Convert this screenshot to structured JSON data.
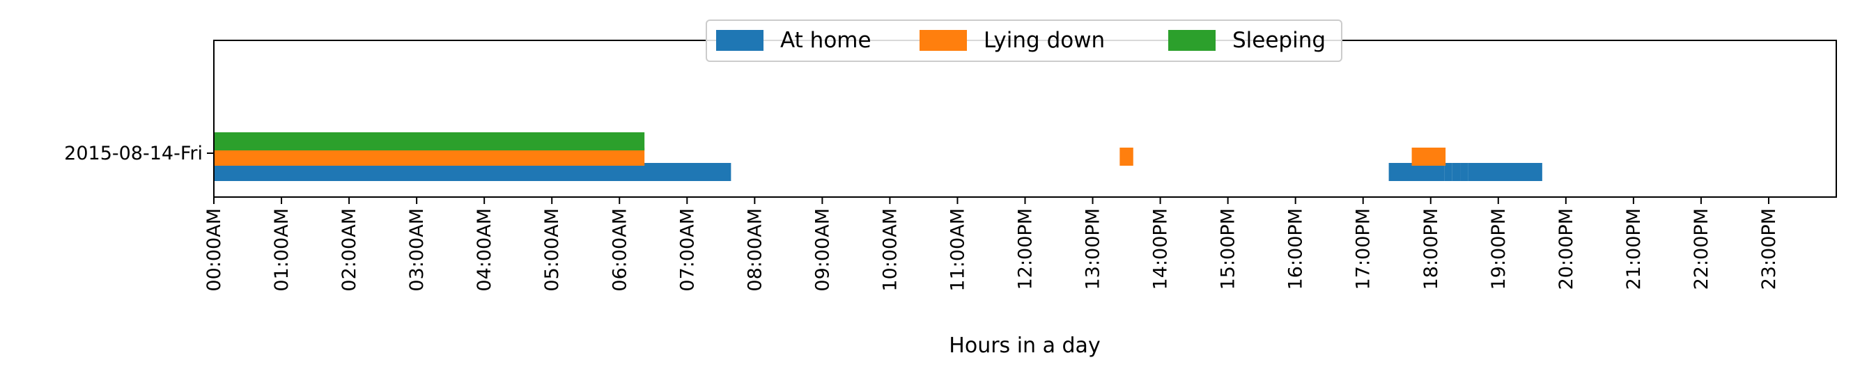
{
  "chart_data": {
    "type": "bar",
    "orientation": "horizontal-timeline",
    "xlabel": "Hours in a day",
    "ylabel": "",
    "xlim": [
      0,
      24
    ],
    "x_unit": "hours",
    "x_tick_labels": [
      "00:00AM",
      "01:00AM",
      "02:00AM",
      "03:00AM",
      "04:00AM",
      "05:00AM",
      "06:00AM",
      "07:00AM",
      "08:00AM",
      "09:00AM",
      "10:00AM",
      "11:00AM",
      "12:00PM",
      "13:00PM",
      "14:00PM",
      "15:00PM",
      "16:00PM",
      "17:00PM",
      "18:00PM",
      "19:00PM",
      "20:00PM",
      "21:00PM",
      "22:00PM",
      "23:00PM"
    ],
    "categories": [
      "2015-08-14-Fri"
    ],
    "grid": false,
    "legend_position": "top-center",
    "series": [
      {
        "name": "At home",
        "color": "#1f77b4",
        "intervals": [
          [
            0.0,
            7.65
          ],
          [
            17.38,
            18.2
          ],
          [
            18.2,
            18.32
          ],
          [
            18.32,
            18.44
          ],
          [
            18.44,
            18.55
          ],
          [
            18.55,
            19.65
          ]
        ]
      },
      {
        "name": "Lying down",
        "color": "#ff7f0e",
        "intervals": [
          [
            0.0,
            6.37
          ],
          [
            13.4,
            13.6
          ],
          [
            17.72,
            18.22
          ]
        ]
      },
      {
        "name": "Sleeping",
        "color": "#2ca02c",
        "intervals": [
          [
            0.0,
            6.37
          ]
        ]
      }
    ]
  }
}
